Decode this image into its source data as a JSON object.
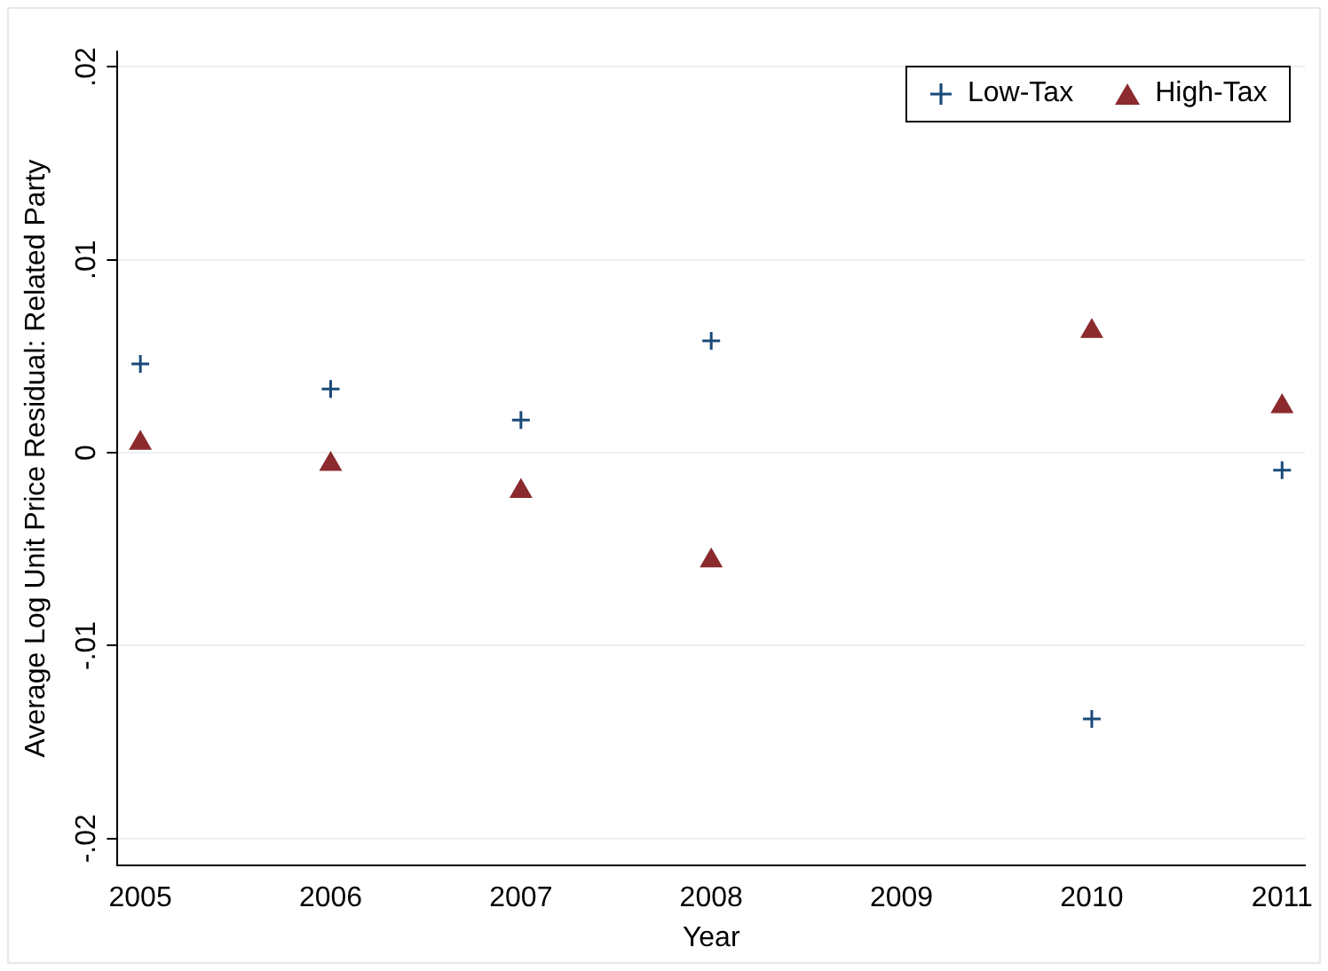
{
  "chart_data": {
    "type": "scatter",
    "xlabel": "Year",
    "ylabel": "Average Log Unit Price Residual: Related Party",
    "xlim": [
      2004.88,
      2011.12
    ],
    "xticks": [
      2005,
      2006,
      2007,
      2008,
      2009,
      2010,
      2011
    ],
    "ylim": [
      -0.0214,
      0.0208
    ],
    "yticks": [
      {
        "value": -0.02,
        "label": "-.02"
      },
      {
        "value": -0.01,
        "label": "-.01"
      },
      {
        "value": 0,
        "label": "0"
      },
      {
        "value": 0.01,
        "label": ".01"
      },
      {
        "value": 0.02,
        "label": ".02"
      }
    ],
    "grid": "y",
    "legend": "top right",
    "series": [
      {
        "name": "Low-Tax",
        "color": "#1a4a7a",
        "marker": "cross",
        "x": [
          2005,
          2006,
          2007,
          2008,
          2010,
          2011
        ],
        "values": [
          0.0046,
          0.0033,
          0.0017,
          0.0058,
          -0.0138,
          -0.0009
        ]
      },
      {
        "name": "High-Tax",
        "color": "#8b2b2e",
        "marker": "triangle",
        "x": [
          2005,
          2006,
          2007,
          2008,
          2010,
          2011
        ],
        "values": [
          0.0005,
          -0.0006,
          -0.002,
          -0.0056,
          0.0063,
          0.0024
        ]
      }
    ]
  }
}
